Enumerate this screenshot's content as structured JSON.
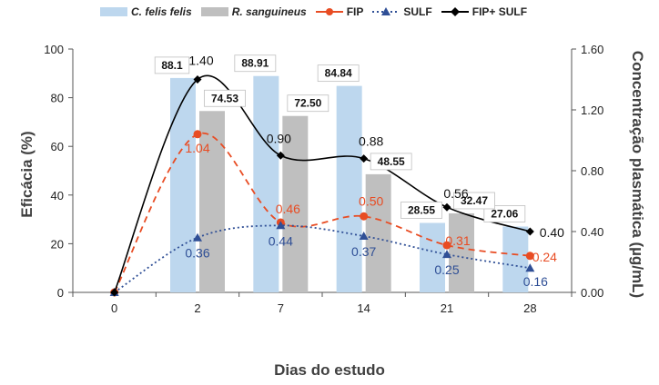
{
  "chart_data": {
    "type": "combo-bar-line",
    "categories": [
      "0",
      "2",
      "7",
      "14",
      "21",
      "28"
    ],
    "xlabel": "Dias do estudo",
    "ylabel": "Eficácia (%)",
    "ylabel_right": "Concentração plasmática (µg/mL)",
    "ylim": [
      0,
      100
    ],
    "ylim_right": [
      0,
      1.6
    ],
    "yticks": [
      "0",
      "20",
      "40",
      "60",
      "80",
      "100"
    ],
    "yticks_right": [
      "0.00",
      "0.40",
      "0.80",
      "1.20",
      "1.60"
    ],
    "grid": false,
    "legend_position": "top",
    "bar_series": [
      {
        "name": "C. felis felis",
        "color": "#bdd7ee",
        "italic": true,
        "values": [
          null,
          88.1,
          88.91,
          84.84,
          28.55,
          27.06
        ],
        "labels": [
          "",
          "88.1",
          "88.91",
          "84.84",
          "28.55",
          "27.06"
        ]
      },
      {
        "name": "R. sanguineus",
        "color": "#bfbfbf",
        "italic": true,
        "values": [
          null,
          74.53,
          72.5,
          48.55,
          32.47,
          null
        ],
        "labels": [
          "",
          "74.53",
          "72.50",
          "48.55",
          "32.47",
          ""
        ]
      }
    ],
    "line_series": [
      {
        "name": "FIP",
        "color": "#e84c23",
        "dash": "dashed",
        "marker": "circle",
        "values": [
          0,
          1.04,
          0.46,
          0.5,
          0.31,
          0.24
        ],
        "labels": [
          "",
          "1.04",
          "0.46",
          "0.50",
          "0.31",
          "0.24"
        ]
      },
      {
        "name": "SULF",
        "color": "#2f4f96",
        "dash": "dotted",
        "marker": "triangle",
        "values": [
          0,
          0.36,
          0.44,
          0.37,
          0.25,
          0.16
        ],
        "labels": [
          "",
          "0.36",
          "0.44",
          "0.37",
          "0.25",
          "0.16"
        ]
      },
      {
        "name": "FIP+ SULF",
        "color": "#000000",
        "dash": "solid",
        "marker": "diamond",
        "values": [
          0,
          1.4,
          0.9,
          0.88,
          0.56,
          0.4
        ],
        "labels": [
          "",
          "1.40",
          "0.90",
          "0.88",
          "0.56",
          "0.40"
        ]
      }
    ]
  }
}
